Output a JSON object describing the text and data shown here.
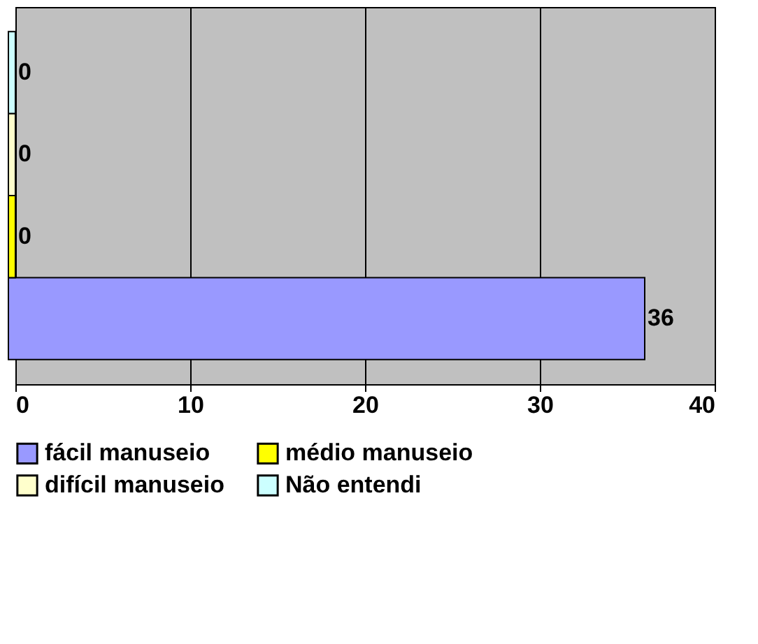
{
  "chart_data": {
    "type": "bar",
    "orientation": "horizontal",
    "categories": [
      null
    ],
    "series": [
      {
        "name": "fácil manuseio",
        "color": "#9999ff",
        "values": [
          36
        ]
      },
      {
        "name": "médio manuseio",
        "color": "#ffff00",
        "values": [
          0
        ]
      },
      {
        "name": "difícil manuseio",
        "color": "#ffffcc",
        "values": [
          0
        ]
      },
      {
        "name": "Não entendi",
        "color": "#ccffff",
        "values": [
          0
        ]
      }
    ],
    "xlim": [
      0,
      40
    ],
    "xticks": [
      0,
      10,
      20,
      30,
      40
    ],
    "grid": "x",
    "legend": "bottom",
    "data_labels": true
  }
}
